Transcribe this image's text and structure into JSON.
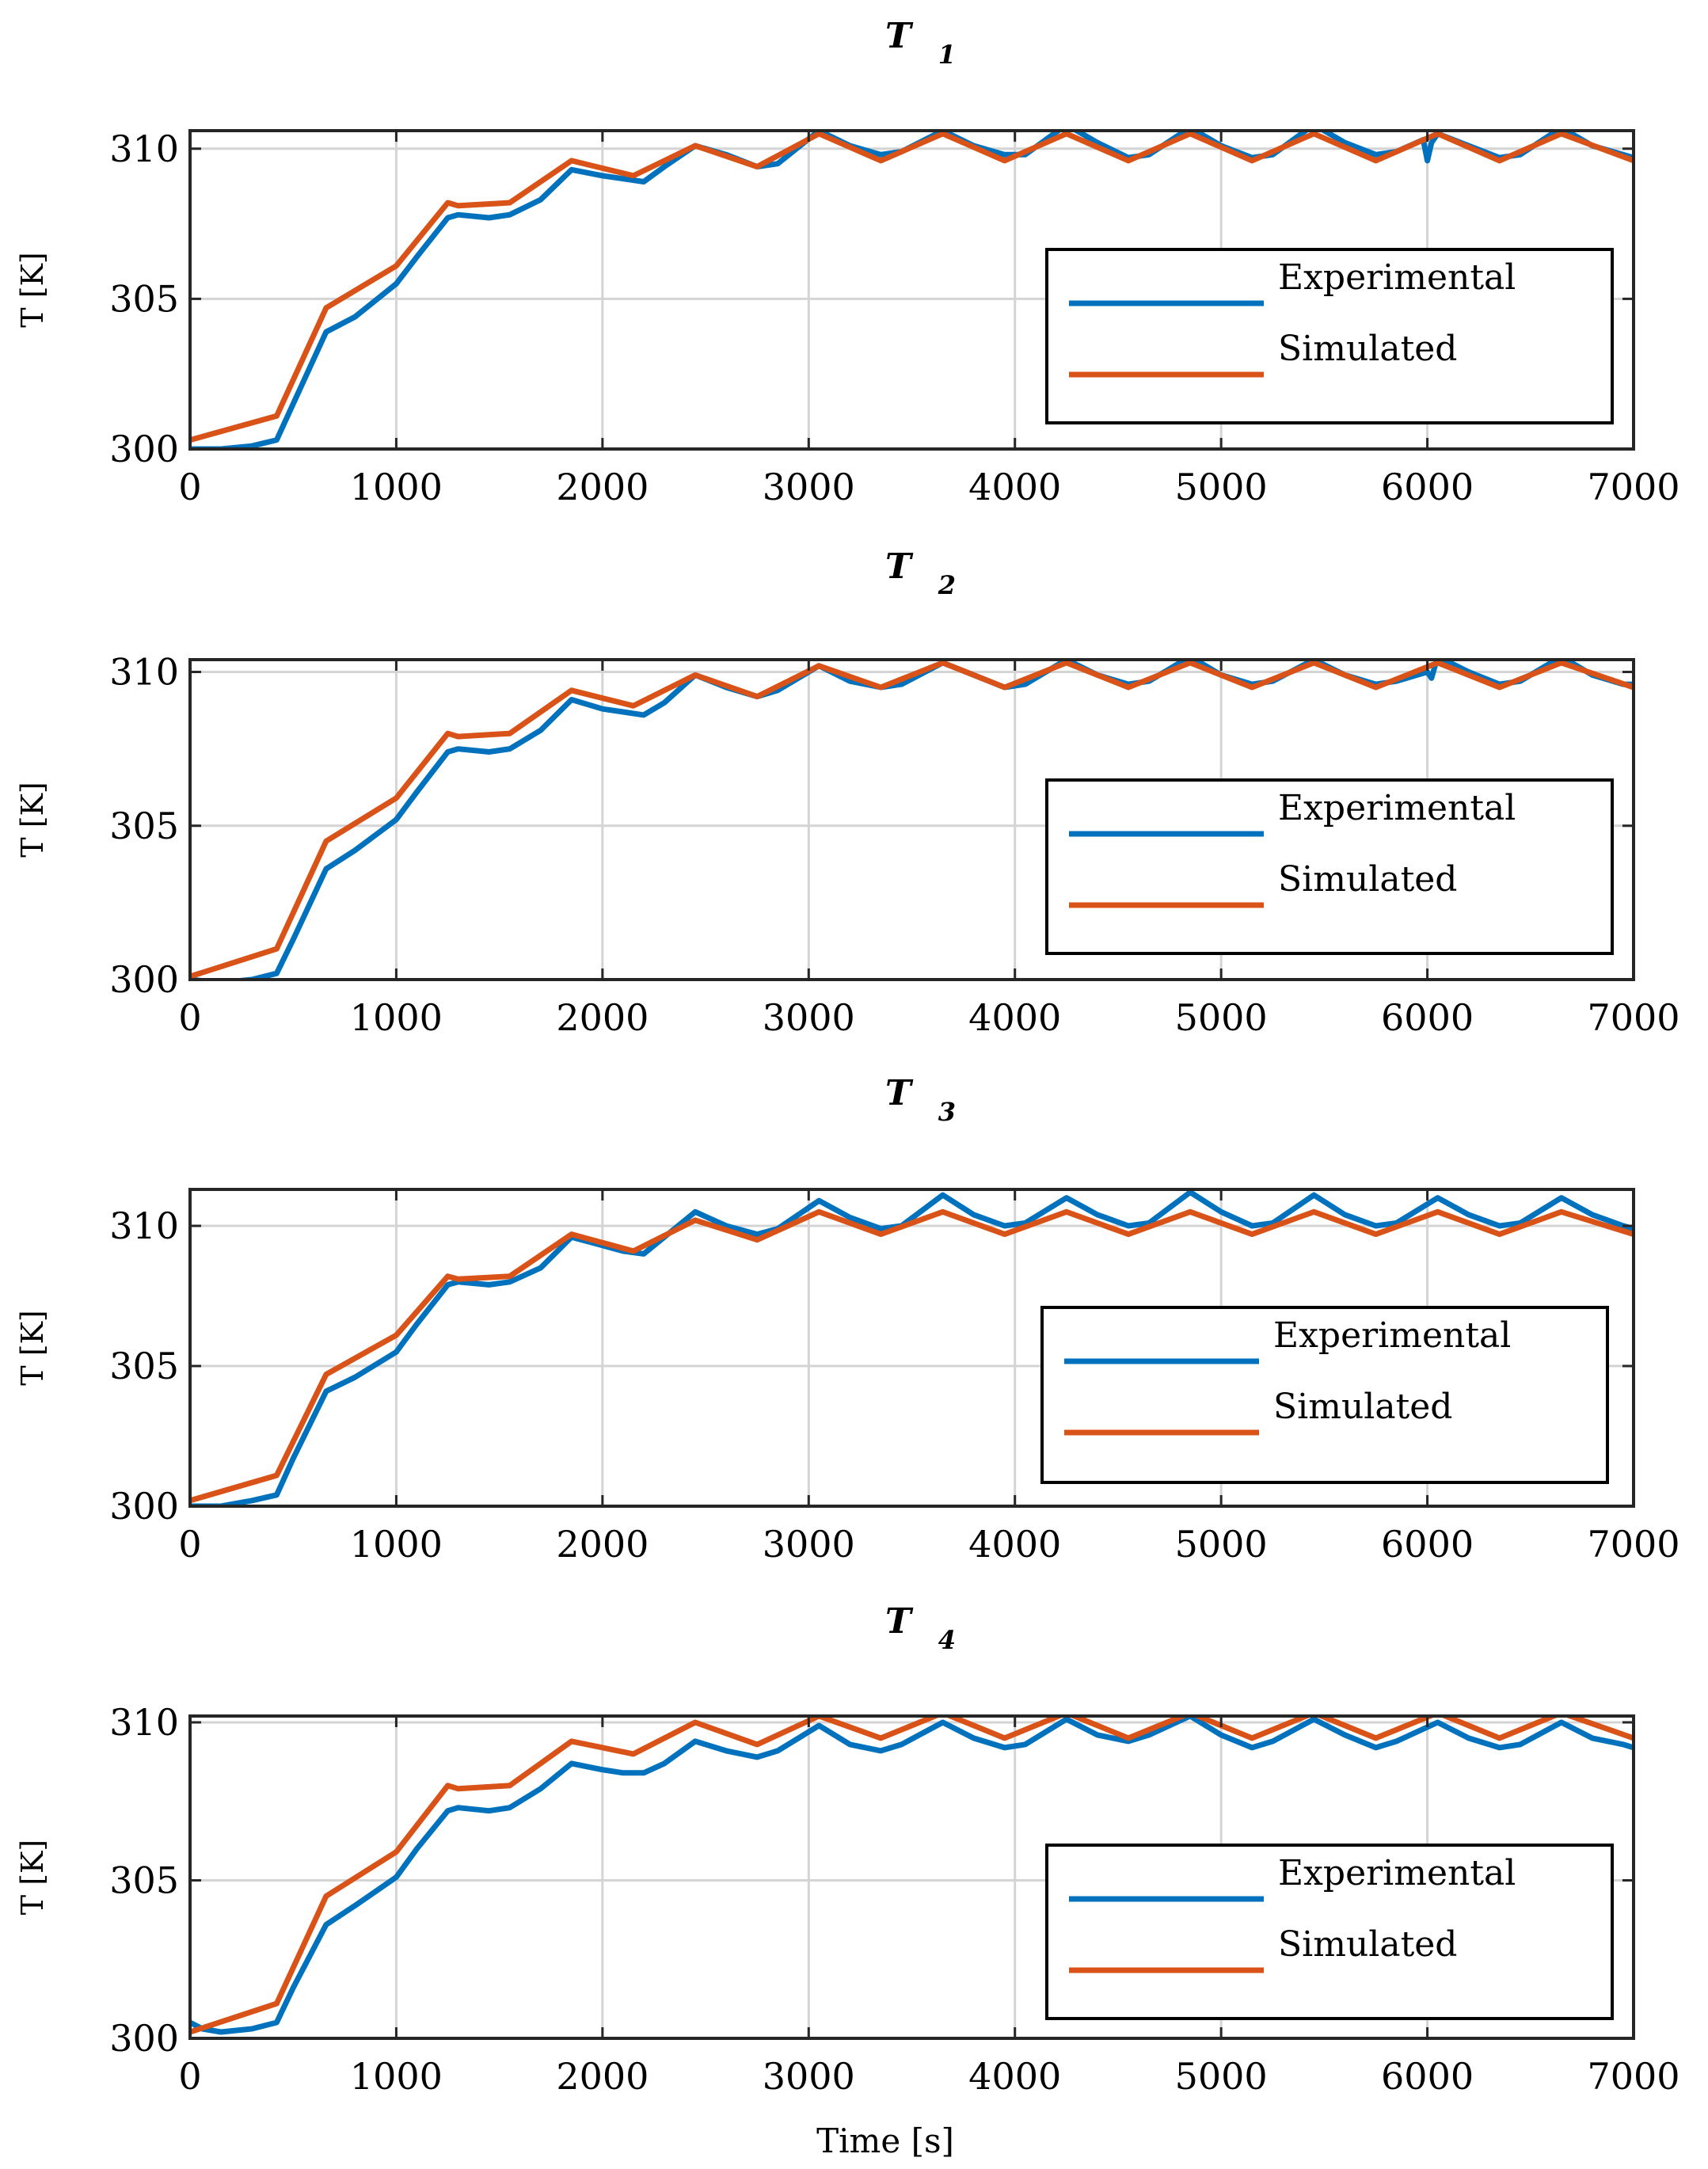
{
  "chart_data": {
    "type": "line",
    "colors": {
      "experimental": "#0072BD",
      "simulated": "#D95319"
    },
    "xlabel": "Time [s]",
    "xlim": [
      0,
      7000
    ],
    "xticks": [
      0,
      1000,
      2000,
      3000,
      4000,
      5000,
      6000,
      7000
    ],
    "xtick_labels": [
      "0",
      "1000",
      "2000",
      "3000",
      "4000",
      "5000",
      "6000",
      "7000"
    ],
    "panels": [
      {
        "title_main": "T",
        "title_sub": "1",
        "ylabel": "T [K]",
        "ylim": [
          300,
          310.6
        ],
        "yticks": [
          300,
          305,
          310
        ],
        "ytick_labels": [
          "300",
          "305",
          "310"
        ],
        "legend": [
          "Experimental",
          "Simulated"
        ],
        "series": [
          {
            "name": "Experimental",
            "x": [
              0,
              150,
              300,
              420,
              500,
              660,
              800,
              1000,
              1100,
              1250,
              1300,
              1450,
              1550,
              1700,
              1850,
              2000,
              2100,
              2200,
              2300,
              2450,
              2600,
              2750,
              2850,
              3050,
              3200,
              3350,
              3450,
              3650,
              3800,
              3950,
              4050,
              4250,
              4400,
              4550,
              4650,
              4850,
              5000,
              5150,
              5250,
              5450,
              5600,
              5750,
              5850,
              5980,
              6000,
              6020,
              6050,
              6200,
              6350,
              6450,
              6650,
              6800,
              6950,
              7000
            ],
            "y": [
              300.0,
              300.0,
              300.1,
              300.3,
              301.5,
              303.9,
              304.4,
              305.5,
              306.4,
              307.7,
              307.8,
              307.7,
              307.8,
              308.3,
              309.3,
              309.1,
              309.0,
              308.9,
              309.4,
              310.1,
              309.8,
              309.4,
              309.5,
              310.6,
              310.1,
              309.8,
              309.9,
              310.6,
              310.1,
              309.8,
              309.8,
              310.8,
              310.2,
              309.7,
              309.8,
              310.7,
              310.1,
              309.7,
              309.8,
              310.8,
              310.2,
              309.8,
              309.9,
              310.3,
              309.6,
              310.2,
              310.5,
              310.1,
              309.7,
              309.8,
              310.7,
              310.1,
              309.8,
              309.7
            ]
          },
          {
            "name": "Simulated",
            "x": [
              0,
              420,
              660,
              1000,
              1250,
              1300,
              1550,
              1850,
              2150,
              2450,
              2750,
              3050,
              3350,
              3650,
              3950,
              4250,
              4550,
              4850,
              5150,
              5450,
              5750,
              6050,
              6350,
              6650,
              7000
            ],
            "y": [
              300.3,
              301.1,
              304.7,
              306.1,
              308.2,
              308.1,
              308.2,
              309.6,
              309.1,
              310.1,
              309.4,
              310.5,
              309.6,
              310.5,
              309.6,
              310.5,
              309.6,
              310.5,
              309.6,
              310.5,
              309.6,
              310.5,
              309.6,
              310.5,
              309.6
            ]
          }
        ]
      },
      {
        "title_main": "T",
        "title_sub": "2",
        "ylabel": "T [K]",
        "ylim": [
          300,
          310.4
        ],
        "yticks": [
          300,
          305,
          310
        ],
        "ytick_labels": [
          "300",
          "305",
          "310"
        ],
        "legend": [
          "Experimental",
          "Simulated"
        ],
        "series": [
          {
            "name": "Experimental",
            "x": [
              0,
              150,
              300,
              420,
              500,
              660,
              800,
              1000,
              1100,
              1250,
              1300,
              1450,
              1550,
              1700,
              1850,
              2000,
              2100,
              2200,
              2300,
              2450,
              2600,
              2750,
              2850,
              3050,
              3200,
              3350,
              3450,
              3650,
              3800,
              3950,
              4050,
              4250,
              4400,
              4550,
              4650,
              4850,
              5000,
              5150,
              5250,
              5450,
              5600,
              5750,
              5850,
              6000,
              6020,
              6050,
              6200,
              6350,
              6450,
              6650,
              6800,
              6950,
              7000
            ],
            "y": [
              300.0,
              299.9,
              300.0,
              300.2,
              301.3,
              303.6,
              304.2,
              305.2,
              306.1,
              307.4,
              307.5,
              307.4,
              307.5,
              308.1,
              309.1,
              308.8,
              308.7,
              308.6,
              309.0,
              309.9,
              309.5,
              309.2,
              309.4,
              310.2,
              309.7,
              309.5,
              309.6,
              310.3,
              309.9,
              309.5,
              309.6,
              310.4,
              309.9,
              309.6,
              309.7,
              310.5,
              309.9,
              309.6,
              309.7,
              310.4,
              309.9,
              309.6,
              309.7,
              310.0,
              309.8,
              310.5,
              310.0,
              309.6,
              309.7,
              310.5,
              309.9,
              309.6,
              309.6
            ]
          },
          {
            "name": "Simulated",
            "x": [
              0,
              420,
              660,
              1000,
              1250,
              1300,
              1550,
              1850,
              2150,
              2450,
              2750,
              3050,
              3350,
              3650,
              3950,
              4250,
              4550,
              4850,
              5150,
              5450,
              5750,
              6050,
              6350,
              6650,
              7000
            ],
            "y": [
              300.1,
              301.0,
              304.5,
              305.9,
              308.0,
              307.9,
              308.0,
              309.4,
              308.9,
              309.9,
              309.2,
              310.2,
              309.5,
              310.3,
              309.5,
              310.3,
              309.5,
              310.3,
              309.5,
              310.3,
              309.5,
              310.3,
              309.5,
              310.3,
              309.5
            ]
          }
        ]
      },
      {
        "title_main": "T",
        "title_sub": "3",
        "ylabel": "T [K]",
        "ylim": [
          300,
          311.3
        ],
        "yticks": [
          300,
          305,
          310
        ],
        "ytick_labels": [
          "300",
          "305",
          "310"
        ],
        "legend": [
          "Experimental",
          "Simulated"
        ],
        "series": [
          {
            "name": "Experimental",
            "x": [
              0,
              150,
              300,
              420,
              500,
              660,
              800,
              1000,
              1100,
              1250,
              1300,
              1450,
              1550,
              1700,
              1850,
              2000,
              2100,
              2200,
              2300,
              2450,
              2600,
              2750,
              2850,
              3050,
              3200,
              3350,
              3450,
              3650,
              3800,
              3950,
              4050,
              4250,
              4400,
              4550,
              4650,
              4850,
              5000,
              5150,
              5250,
              5450,
              5600,
              5750,
              5850,
              6050,
              6200,
              6350,
              6450,
              6650,
              6800,
              6950,
              7000
            ],
            "y": [
              300.0,
              300.0,
              300.2,
              300.4,
              301.7,
              304.1,
              304.6,
              305.5,
              306.5,
              307.9,
              308.0,
              307.9,
              308.0,
              308.5,
              309.6,
              309.3,
              309.1,
              309.0,
              309.6,
              310.5,
              310.0,
              309.7,
              309.9,
              310.9,
              310.3,
              309.9,
              310.0,
              311.1,
              310.4,
              310.0,
              310.1,
              311.0,
              310.4,
              310.0,
              310.1,
              311.2,
              310.5,
              310.0,
              310.1,
              311.1,
              310.4,
              310.0,
              310.1,
              311.0,
              310.4,
              310.0,
              310.1,
              311.0,
              310.4,
              310.0,
              309.9
            ]
          },
          {
            "name": "Simulated",
            "x": [
              0,
              420,
              660,
              1000,
              1250,
              1300,
              1550,
              1850,
              2150,
              2450,
              2750,
              3050,
              3350,
              3650,
              3950,
              4250,
              4550,
              4850,
              5150,
              5450,
              5750,
              6050,
              6350,
              6650,
              7000
            ],
            "y": [
              300.2,
              301.1,
              304.7,
              306.1,
              308.2,
              308.1,
              308.2,
              309.7,
              309.1,
              310.2,
              309.5,
              310.5,
              309.7,
              310.5,
              309.7,
              310.5,
              309.7,
              310.5,
              309.7,
              310.5,
              309.7,
              310.5,
              309.7,
              310.5,
              309.7
            ]
          }
        ]
      },
      {
        "title_main": "T",
        "title_sub": "4",
        "ylabel": "T [K]",
        "ylim": [
          300,
          310.2
        ],
        "yticks": [
          300,
          305,
          310
        ],
        "ytick_labels": [
          "300",
          "305",
          "310"
        ],
        "legend": [
          "Experimental",
          "Simulated"
        ],
        "series": [
          {
            "name": "Experimental",
            "x": [
              0,
              60,
              150,
              300,
              420,
              500,
              660,
              800,
              1000,
              1100,
              1250,
              1300,
              1450,
              1550,
              1700,
              1850,
              2000,
              2100,
              2200,
              2300,
              2450,
              2600,
              2750,
              2850,
              3050,
              3200,
              3350,
              3450,
              3650,
              3800,
              3950,
              4050,
              4250,
              4400,
              4550,
              4650,
              4850,
              5000,
              5150,
              5250,
              5450,
              5600,
              5750,
              5850,
              6050,
              6200,
              6350,
              6450,
              6650,
              6800,
              6950,
              7000
            ],
            "y": [
              300.5,
              300.3,
              300.2,
              300.3,
              300.5,
              301.6,
              303.6,
              304.2,
              305.1,
              306.0,
              307.2,
              307.3,
              307.2,
              307.3,
              307.9,
              308.7,
              308.5,
              308.4,
              308.4,
              308.7,
              309.4,
              309.1,
              308.9,
              309.1,
              309.9,
              309.3,
              309.1,
              309.3,
              310.0,
              309.5,
              309.2,
              309.3,
              310.1,
              309.6,
              309.4,
              309.6,
              310.2,
              309.6,
              309.2,
              309.4,
              310.1,
              309.6,
              309.2,
              309.4,
              310.0,
              309.5,
              309.2,
              309.3,
              310.0,
              309.5,
              309.3,
              309.2
            ]
          },
          {
            "name": "Simulated",
            "x": [
              0,
              420,
              660,
              1000,
              1250,
              1300,
              1550,
              1850,
              2150,
              2450,
              2750,
              3050,
              3350,
              3650,
              3950,
              4250,
              4550,
              4850,
              5150,
              5450,
              5750,
              6050,
              6350,
              6650,
              7000
            ],
            "y": [
              300.2,
              301.1,
              304.5,
              305.9,
              308.0,
              307.9,
              308.0,
              309.4,
              309.0,
              310.0,
              309.3,
              310.2,
              309.5,
              310.3,
              309.5,
              310.3,
              309.5,
              310.3,
              309.5,
              310.3,
              309.5,
              310.3,
              309.5,
              310.3,
              309.5
            ]
          }
        ]
      }
    ]
  }
}
